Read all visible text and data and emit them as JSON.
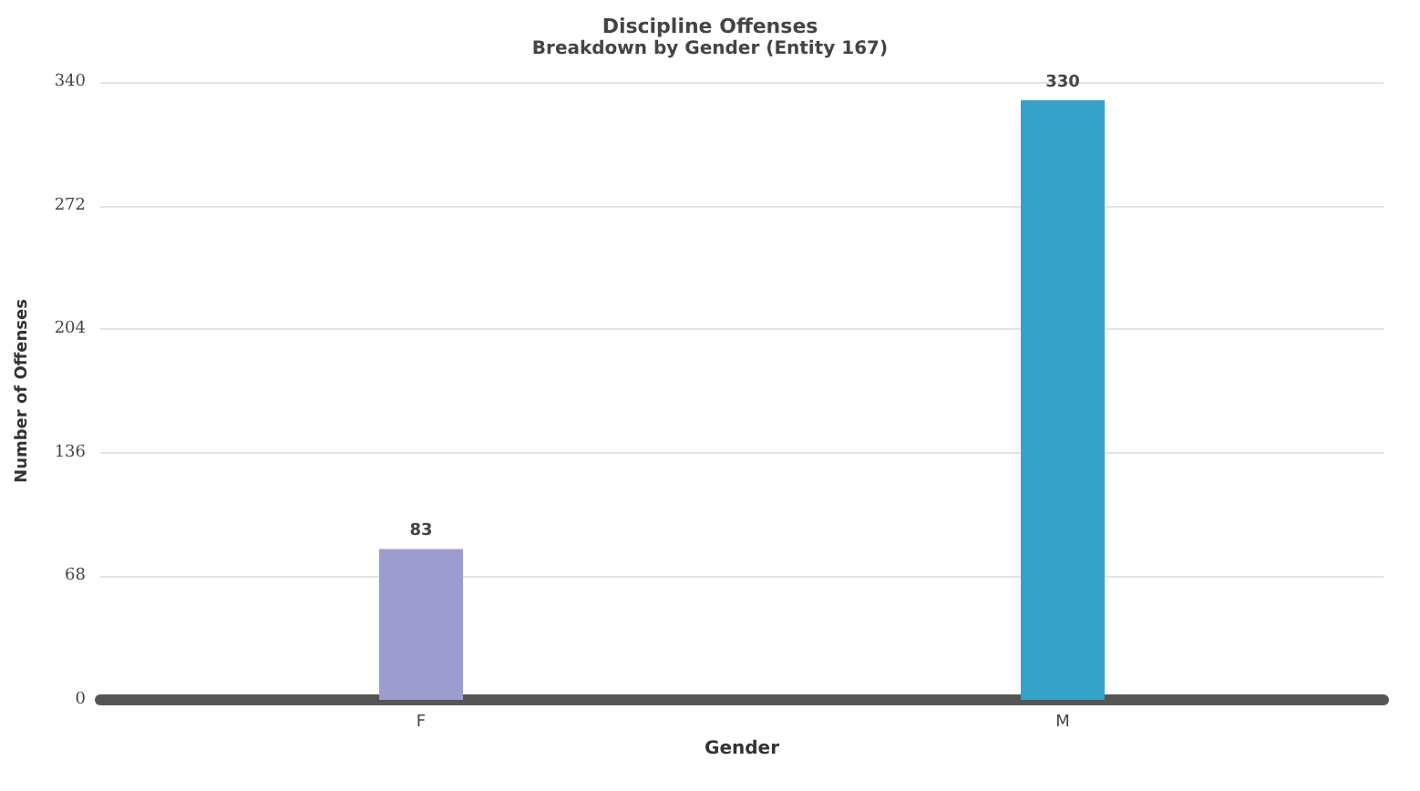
{
  "chart_data": {
    "type": "bar",
    "title": "Discipline Offenses",
    "subtitle": "Breakdown by Gender (Entity 167)",
    "xlabel": "Gender",
    "ylabel": "Number of Offenses",
    "categories": [
      "F",
      "M"
    ],
    "values": [
      83,
      330
    ],
    "colors": [
      "#9c9ccf",
      "#35a3c9"
    ],
    "ylim": [
      0,
      340
    ],
    "yticks": [
      0,
      68,
      136,
      204,
      272,
      340
    ],
    "grid": "y",
    "data_labels": true
  }
}
